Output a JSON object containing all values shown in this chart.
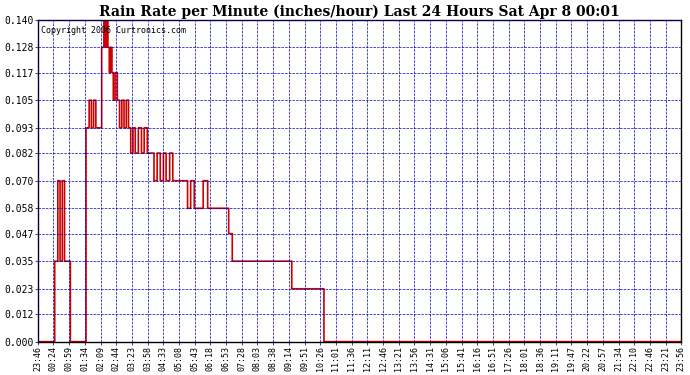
{
  "title": "Rain Rate per Minute (inches/hour) Last 24 Hours Sat Apr 8 00:01",
  "copyright": "Copyright 2006 Curtronics.com",
  "background_color": "#ffffff",
  "plot_bg_color": "#ffffff",
  "line_color": "#cc0000",
  "grid_color": "#0000bb",
  "tick_label_color": "#000000",
  "ylim": [
    0.0,
    0.14
  ],
  "yticks": [
    0.0,
    0.012,
    0.023,
    0.035,
    0.047,
    0.058,
    0.07,
    0.082,
    0.093,
    0.105,
    0.117,
    0.128,
    0.14
  ],
  "x_labels": [
    "23:46",
    "00:24",
    "00:59",
    "01:34",
    "02:09",
    "02:44",
    "03:23",
    "03:58",
    "04:33",
    "05:08",
    "05:43",
    "06:18",
    "06:53",
    "07:28",
    "08:03",
    "08:38",
    "09:14",
    "09:51",
    "10:26",
    "11:01",
    "11:36",
    "12:11",
    "12:46",
    "13:21",
    "13:56",
    "14:31",
    "15:06",
    "15:41",
    "16:16",
    "16:51",
    "17:26",
    "18:01",
    "18:36",
    "19:11",
    "19:47",
    "20:22",
    "20:57",
    "21:34",
    "22:10",
    "22:46",
    "23:21",
    "23:56"
  ],
  "figsize": [
    6.9,
    3.75
  ],
  "dpi": 100
}
